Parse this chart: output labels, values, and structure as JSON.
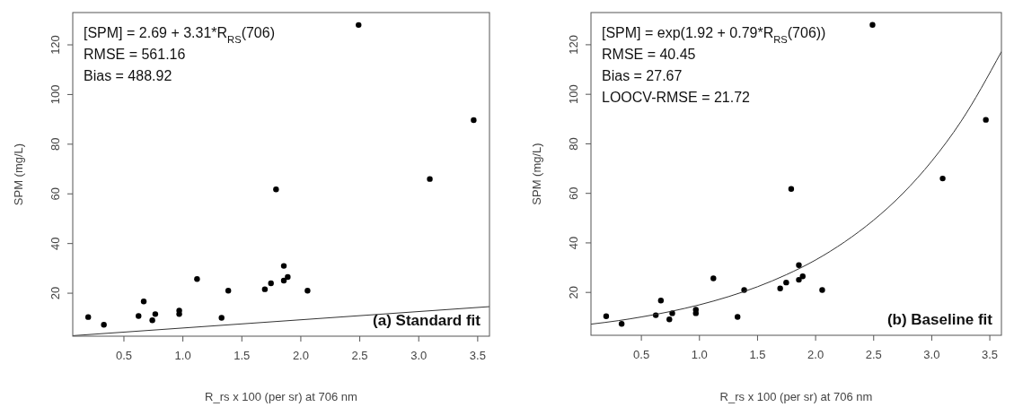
{
  "chart_data": [
    {
      "type": "scatter",
      "xlabel": "R_rs x 100 (per sr) at 706 nm",
      "ylabel": "SPM (mg/L)",
      "xlim": [
        0.066,
        3.6
      ],
      "ylim": [
        2.7,
        133
      ],
      "xticks": [
        {
          "value": 0.5,
          "label": "0.5"
        },
        {
          "value": 1,
          "label": "1.0"
        },
        {
          "value": 1.5,
          "label": "1.5"
        },
        {
          "value": 2,
          "label": "2.0"
        },
        {
          "value": 2.5,
          "label": "2.5"
        },
        {
          "value": 3,
          "label": "3.0"
        },
        {
          "value": 3.5,
          "label": "3.5"
        }
      ],
      "yticks": [
        20,
        40,
        60,
        80,
        100,
        120
      ],
      "grid": false,
      "annotations": [
        "[SPM] = 2.69 + 3.31*R$_{RS}$(706)",
        "RMSE = 561.16",
        "Bias = 488.92",
        "(a) Standard fit"
      ],
      "series": [
        {
          "marker": "circle",
          "color": "#000000",
          "x": [
            0.197,
            0.33,
            0.624,
            0.668,
            0.741,
            0.766,
            0.969,
            0.969,
            1.12,
            1.328,
            1.385,
            1.695,
            1.747,
            1.856,
            1.856,
            1.889,
            2.057,
            2.49,
            1.79,
            3.094,
            3.466
          ],
          "values": [
            10.4,
            7.3,
            10.8,
            16.7,
            9.1,
            11.6,
            13,
            11.6,
            25.7,
            10.1,
            21,
            21.6,
            24,
            31,
            25.1,
            26.5,
            21,
            128,
            61.8,
            66,
            89.7
          ]
        },
        {
          "type": "line",
          "marker": "none",
          "color": "#333333",
          "x": [
            0.066,
            3.6
          ],
          "values": [
            2.9,
            14.6
          ]
        }
      ]
    },
    {
      "type": "scatter",
      "xlabel": "R_rs x 100 (per sr) at 706 nm",
      "ylabel": "SPM (mg/L)",
      "xlim": [
        0.066,
        3.6
      ],
      "ylim": [
        2.7,
        133
      ],
      "xticks": [
        {
          "value": 0.5,
          "label": "0.5"
        },
        {
          "value": 1,
          "label": "1.0"
        },
        {
          "value": 1.5,
          "label": "1.5"
        },
        {
          "value": 2,
          "label": "2.0"
        },
        {
          "value": 2.5,
          "label": "2.5"
        },
        {
          "value": 3,
          "label": "3.0"
        },
        {
          "value": 3.5,
          "label": "3.5"
        }
      ],
      "yticks": [
        20,
        40,
        60,
        80,
        100,
        120
      ],
      "grid": false,
      "annotations": [
        "[SPM] = exp(1.92 + 0.79*R$_{RS}$(706))",
        "RMSE = 40.45",
        "Bias = 27.67",
        "LOOCV-RMSE = 21.72",
        "(b) Baseline fit"
      ],
      "series": [
        {
          "marker": "circle",
          "color": "#000000",
          "x": [
            0.197,
            0.33,
            0.624,
            0.668,
            0.741,
            0.766,
            0.969,
            0.969,
            1.12,
            1.328,
            1.385,
            1.695,
            1.747,
            1.856,
            1.856,
            1.889,
            2.057,
            2.49,
            1.79,
            3.094,
            3.466
          ],
          "values": [
            10.4,
            7.3,
            10.8,
            16.7,
            9.1,
            11.6,
            13,
            11.6,
            25.7,
            10.1,
            21,
            21.6,
            24,
            31,
            25.1,
            26.5,
            21,
            128,
            61.8,
            66,
            89.7
          ]
        },
        {
          "type": "line",
          "marker": "none",
          "color": "#333333",
          "x": [
            0.066,
            0.3,
            0.5,
            0.75,
            1,
            1.25,
            1.5,
            1.75,
            2,
            2.25,
            2.5,
            2.75,
            3,
            3.25,
            3.6
          ],
          "values": [
            7.2,
            8.6,
            10.1,
            12.3,
            15,
            18.3,
            22.3,
            27.2,
            33.1,
            40.4,
            49.2,
            59.9,
            73,
            88.9,
            117.2
          ]
        }
      ]
    }
  ]
}
